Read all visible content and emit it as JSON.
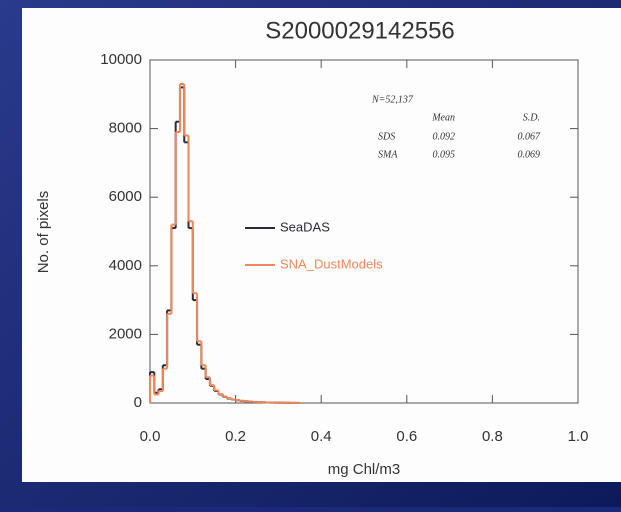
{
  "chart_data": {
    "type": "histogram",
    "title": "S2000029142556",
    "x_label": "mg Chl/m3",
    "y_label": "No. of pixels",
    "bins": [
      0,
      0.01,
      0.02,
      0.03,
      0.04,
      0.05,
      0.06,
      0.07,
      0.08,
      0.09,
      0.1,
      0.11,
      0.12,
      0.13,
      0.14,
      0.15,
      0.16,
      0.17,
      0.18,
      0.19,
      0.2,
      0.21,
      0.22,
      0.23,
      0.24,
      0.25,
      0.26,
      0.27,
      0.28,
      0.29,
      0.3,
      0.31,
      0.32,
      0.33,
      0.34,
      0.35
    ],
    "series": [
      {
        "name": "SeaDAS",
        "color": "#2b2b3a",
        "values": [
          900,
          300,
          400,
          1100,
          2700,
          5100,
          8200,
          9200,
          7600,
          5100,
          3000,
          1700,
          1000,
          700,
          500,
          350,
          250,
          180,
          130,
          100,
          80,
          60,
          50,
          40,
          30,
          25,
          20,
          15,
          12,
          10,
          8,
          6,
          5,
          4,
          3
        ]
      },
      {
        "name": "SNA_DustModels",
        "color": "#f0875a",
        "values": [
          800,
          250,
          350,
          1000,
          2600,
          5200,
          7900,
          9300,
          7800,
          5300,
          3200,
          1800,
          1100,
          750,
          520,
          370,
          260,
          190,
          140,
          105,
          85,
          65,
          52,
          42,
          32,
          27,
          21,
          16,
          13,
          10,
          8,
          6,
          5,
          4,
          3
        ]
      }
    ],
    "xlim": [
      0,
      1
    ],
    "xticks": [
      {
        "value": 0,
        "label": "0.0"
      },
      {
        "value": 0.2,
        "label": "0.2"
      },
      {
        "value": 0.4,
        "label": "0.4"
      },
      {
        "value": 0.6,
        "label": "0.6"
      },
      {
        "value": 0.8,
        "label": "0.8"
      },
      {
        "value": 1,
        "label": "1.0"
      }
    ],
    "ylim": [
      0,
      10000
    ],
    "yticks": [
      0,
      2000,
      4000,
      6000,
      8000,
      10000
    ],
    "annotation": {
      "n": "N=52,137",
      "columns": [
        "Mean",
        "S.D."
      ],
      "rows": [
        [
          "SDS",
          "0.092",
          "0.067"
        ],
        [
          "SMA",
          "0.095",
          "0.069"
        ]
      ]
    }
  }
}
